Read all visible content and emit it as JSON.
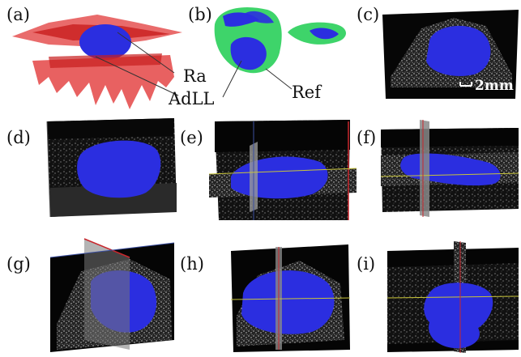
{
  "panels": [
    {
      "id": "a",
      "label": "(a)"
    },
    {
      "id": "b",
      "label": "(b)"
    },
    {
      "id": "c",
      "label": "(c)"
    },
    {
      "id": "d",
      "label": "(d)"
    },
    {
      "id": "e",
      "label": "(e)"
    },
    {
      "id": "f",
      "label": "(f)"
    },
    {
      "id": "g",
      "label": "(g)"
    },
    {
      "id": "h",
      "label": "(h)"
    },
    {
      "id": "i",
      "label": "(i)"
    }
  ],
  "annotations": {
    "ra": "Ra",
    "adll": "AdLL",
    "ref": "Ref",
    "scale": "2mm"
  },
  "colors": {
    "segmentation_blue": "#2b2ee0",
    "reference_green": "#3ed46a",
    "raw_red": "#e23a3a",
    "ultrasound_black": "#050505",
    "slice_edge_red": "#c8262c",
    "slice_edge_yellow": "#c9c53a"
  }
}
